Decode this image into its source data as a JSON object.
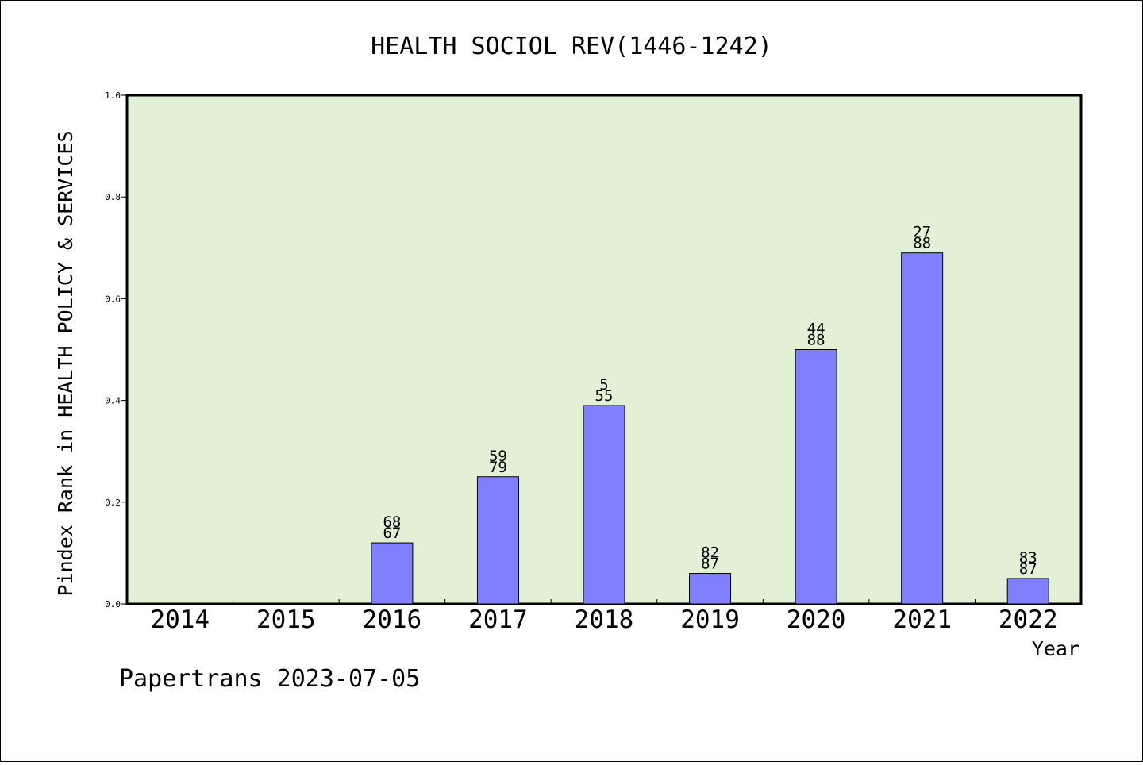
{
  "chart_data": {
    "type": "bar",
    "title": "HEALTH SOCIOL REV(1446-1242)",
    "xlabel": "Year",
    "ylabel": "Pindex Rank in HEALTH POLICY & SERVICES",
    "footer": "Papertrans 2023-07-05",
    "categories": [
      "2014",
      "2015",
      "2016",
      "2017",
      "2018",
      "2019",
      "2020",
      "2021",
      "2022"
    ],
    "values": [
      null,
      null,
      0.12,
      0.25,
      0.39,
      0.06,
      0.5,
      0.69,
      0.05
    ],
    "label_top": [
      "",
      "",
      "68",
      "59",
      "5",
      "82",
      "44",
      "27",
      "83"
    ],
    "label_bottom": [
      "",
      "",
      "67",
      "79",
      "55",
      "87",
      "88",
      "88",
      "87"
    ],
    "ylim": [
      0,
      1.0
    ],
    "yticks": [
      "0.0",
      "0.2",
      "0.4",
      "0.6",
      "0.8",
      "1.0"
    ],
    "grid": false,
    "colors": {
      "plot_background": "#e2f0d6",
      "bar_fill": "#8080ff",
      "bar_stroke": "#000000"
    }
  }
}
